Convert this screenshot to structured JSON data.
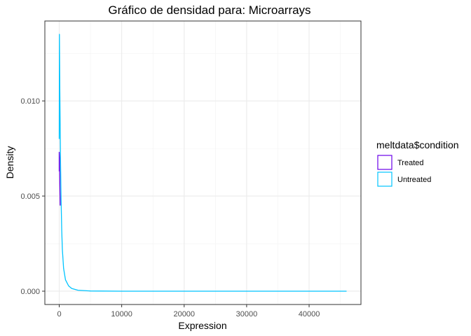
{
  "chart_data": {
    "type": "line",
    "title": "Gráfico de densidad para: Microarrays",
    "xlabel": "Expression",
    "ylabel": "Density",
    "xlim": [
      -2300,
      48300
    ],
    "ylim": [
      -0.0007,
      0.0142
    ],
    "x_ticks": [
      0,
      10000,
      20000,
      30000,
      40000
    ],
    "x_tick_labels": [
      "0",
      "10000",
      "20000",
      "30000",
      "40000"
    ],
    "y_ticks": [
      0.0,
      0.005,
      0.01
    ],
    "y_tick_labels": [
      "0.000",
      "0.005",
      "0.010"
    ],
    "grid": true,
    "legend": {
      "title": "meltdata$condition",
      "position": "right"
    },
    "series": [
      {
        "name": "Treated",
        "color": "#6A00E8",
        "x": [
          0,
          0,
          40,
          80,
          150
        ],
        "y": [
          0.0063,
          0.0073,
          0.007,
          0.006,
          0.0045
        ]
      },
      {
        "name": "Untreated",
        "color": "#00C4FF",
        "x": [
          0,
          30,
          100,
          200,
          300,
          400,
          500,
          700,
          1000,
          1500,
          2000,
          3000,
          5000,
          10000,
          20000,
          30000,
          40000,
          46000
        ],
        "y": [
          0.008,
          0.0135,
          0.0105,
          0.007,
          0.0048,
          0.0032,
          0.0022,
          0.0012,
          0.0006,
          0.00028,
          0.00014,
          5e-05,
          1e-05,
          0.0,
          0.0,
          0.0,
          0.0,
          0.0
        ]
      }
    ]
  }
}
